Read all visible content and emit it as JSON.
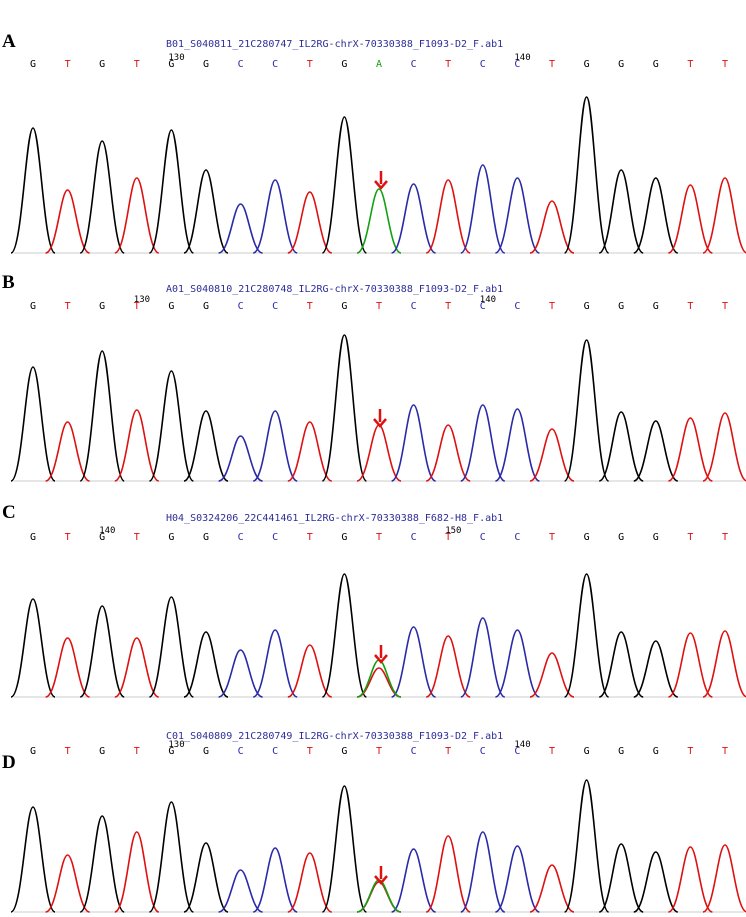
{
  "base_colors": {
    "G": "#000000",
    "T": "#dd1111",
    "C": "#2a2aa8",
    "A": "#11a011"
  },
  "panels": [
    {
      "label": "A",
      "title": "B01_S040811_21C280747_IL2RG-chrX-70330388_F1093-D2_F.ab1",
      "bases": [
        "G",
        "T",
        "G",
        "T",
        "G",
        "G",
        "C",
        "C",
        "T",
        "G",
        "A",
        "C",
        "T",
        "C",
        "C",
        "T",
        "G",
        "G",
        "G",
        "T",
        "T"
      ],
      "markers": [
        {
          "index": 4,
          "label": 130
        },
        {
          "index": 14,
          "label": 140
        }
      ],
      "heights": [
        125,
        63,
        112,
        75,
        123,
        83,
        49,
        73,
        61,
        136,
        64,
        69,
        73,
        88,
        75,
        52,
        156,
        83,
        75,
        68,
        75
      ],
      "secondary_peaks": []
    },
    {
      "label": "B",
      "title": "A01_S040810_21C280748_IL2RG-chrX-70330388_F1093-D2_F.ab1",
      "bases": [
        "G",
        "T",
        "G",
        "T",
        "G",
        "G",
        "C",
        "C",
        "T",
        "G",
        "T",
        "C",
        "T",
        "C",
        "C",
        "T",
        "G",
        "G",
        "G",
        "T",
        "T"
      ],
      "markers": [
        {
          "index": 3,
          "label": 130
        },
        {
          "index": 13,
          "label": 140
        }
      ],
      "heights": [
        114,
        59,
        130,
        71,
        110,
        70,
        45,
        70,
        59,
        146,
        56,
        76,
        56,
        76,
        72,
        52,
        141,
        69,
        60,
        63,
        68
      ],
      "secondary_peaks": []
    },
    {
      "label": "C",
      "title": "H04_S0324206_22C441461_IL2RG-chrX-70330388_F682-H8_F.ab1",
      "bases": [
        "G",
        "T",
        "G",
        "T",
        "G",
        "G",
        "C",
        "C",
        "T",
        "G",
        "T",
        "C",
        "T",
        "C",
        "C",
        "T",
        "G",
        "G",
        "G",
        "T",
        "T"
      ],
      "markers": [
        {
          "index": 2,
          "label": 140
        },
        {
          "index": 12,
          "label": 150
        }
      ],
      "heights": [
        98,
        59,
        91,
        59,
        100,
        65,
        47,
        67,
        52,
        123,
        29,
        70,
        61,
        79,
        67,
        44,
        123,
        65,
        56,
        64,
        66
      ],
      "secondary_peaks": [
        {
          "index": 10,
          "base": "A",
          "height": 37
        }
      ]
    },
    {
      "label": "D",
      "title": "C01_S040809_21C280749_IL2RG-chrX-70330388_F1093-D2_F.ab1",
      "bases": [
        "G",
        "T",
        "G",
        "T",
        "G",
        "G",
        "C",
        "C",
        "T",
        "G",
        "T",
        "C",
        "T",
        "C",
        "C",
        "T",
        "G",
        "G",
        "G",
        "T",
        "T"
      ],
      "markers": [
        {
          "index": 4,
          "label": 130
        },
        {
          "index": 14,
          "label": 140
        }
      ],
      "heights": [
        105,
        57,
        96,
        80,
        110,
        69,
        42,
        64,
        59,
        126,
        30,
        63,
        76,
        80,
        66,
        47,
        132,
        68,
        60,
        65,
        67
      ],
      "secondary_peaks": [
        {
          "index": 10,
          "base": "A",
          "height": 32
        }
      ]
    }
  ]
}
